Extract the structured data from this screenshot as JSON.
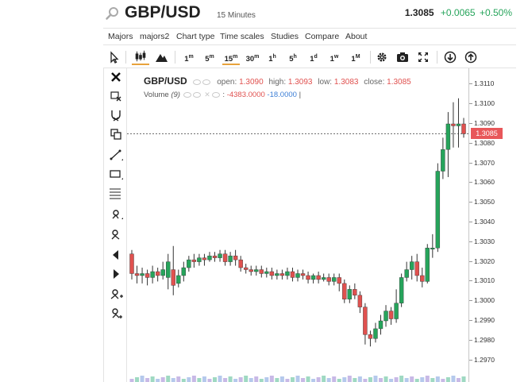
{
  "header": {
    "symbol": "GBP/USD",
    "interval": "15 Minutes",
    "price": "1.3085",
    "change": "+0.0065",
    "change_pct": "+0.50%",
    "colors": {
      "up": "#26a45b",
      "down": "#e0514f",
      "accent": "#e8a23b"
    }
  },
  "menu": [
    "Majors",
    "majors2",
    "Chart type",
    "Time scales",
    "Studies",
    "Compare",
    "About"
  ],
  "toolbar": {
    "intervals": [
      {
        "base": "1",
        "sup": "m"
      },
      {
        "base": "5",
        "sup": "m"
      },
      {
        "base": "15",
        "sup": "m"
      },
      {
        "base": "30",
        "sup": "m"
      },
      {
        "base": "1",
        "sup": "h"
      },
      {
        "base": "5",
        "sup": "h"
      },
      {
        "base": "1",
        "sup": "d"
      },
      {
        "base": "1",
        "sup": "w"
      },
      {
        "base": "1",
        "sup": "M"
      }
    ],
    "active_interval": "15m",
    "icons": [
      "cursor-icon",
      "candlestick-icon",
      "mountain-icon",
      "gear-icon",
      "camera-icon",
      "fullscreen-icon",
      "download-icon",
      "upload-icon"
    ]
  },
  "drawing_tools": [
    "close-icon",
    "crosshair-delete-icon",
    "magnet-icon",
    "copy-icon",
    "trendline-icon",
    "rectangle-icon",
    "fibonacci-icon",
    "pencil-icon",
    "text-icon",
    "arrow-left-icon",
    "arrow-right-icon",
    "add-text-icon",
    "add-alert-icon"
  ],
  "legend": {
    "symbol": "GBP/USD",
    "open_label": "open:",
    "open": "1.3090",
    "high_label": "high:",
    "high": "1.3093",
    "low_label": "low:",
    "low": "1.3083",
    "close_label": "close:",
    "close": "1.3085",
    "volume_label": "Volume",
    "volume_period": "(9)",
    "volume_val1": "-4383.0000",
    "volume_val2": "-18.0000"
  },
  "chart_data": {
    "type": "candlestick",
    "ylim": [
      1.2965,
      1.3115
    ],
    "yticks": [
      "1.3110",
      "1.3100",
      "1.3090",
      "1.3080",
      "1.3070",
      "1.3060",
      "1.3050",
      "1.3040",
      "1.3030",
      "1.3020",
      "1.3010",
      "1.3000",
      "1.2990",
      "1.2980",
      "1.2970"
    ],
    "last_price": "1.3085",
    "candles": [
      [
        1.3024,
        1.3014,
        1.3026,
        1.3011
      ],
      [
        1.3014,
        1.3013,
        1.3018,
        1.3009
      ],
      [
        1.3013,
        1.3014,
        1.3017,
        1.3009
      ],
      [
        1.3014,
        1.3012,
        1.3016,
        1.3008
      ],
      [
        1.3012,
        1.3015,
        1.3018,
        1.3009
      ],
      [
        1.3015,
        1.3013,
        1.3017,
        1.301
      ],
      [
        1.3013,
        1.3016,
        1.302,
        1.3011
      ],
      [
        1.3012,
        1.302,
        1.3024,
        1.3006
      ],
      [
        1.3016,
        1.3008,
        1.3028,
        1.3003
      ],
      [
        1.3009,
        1.3013,
        1.3016,
        1.3007
      ],
      [
        1.3013,
        1.3017,
        1.302,
        1.301
      ],
      [
        1.3017,
        1.3021,
        1.3023,
        1.3015
      ],
      [
        1.3021,
        1.302,
        1.3024,
        1.3017
      ],
      [
        1.302,
        1.3022,
        1.3024,
        1.3018
      ],
      [
        1.3022,
        1.3021,
        1.3024,
        1.3018
      ],
      [
        1.3021,
        1.3023,
        1.3025,
        1.302
      ],
      [
        1.3023,
        1.3022,
        1.3025,
        1.302
      ],
      [
        1.3022,
        1.3024,
        1.3026,
        1.302
      ],
      [
        1.3024,
        1.302,
        1.3026,
        1.3018
      ],
      [
        1.302,
        1.3023,
        1.3025,
        1.3018
      ],
      [
        1.3023,
        1.3021,
        1.3026,
        1.3018
      ],
      [
        1.3021,
        1.3017,
        1.3023,
        1.3015
      ],
      [
        1.3017,
        1.3016,
        1.3019,
        1.3014
      ],
      [
        1.3016,
        1.3015,
        1.3018,
        1.3013
      ],
      [
        1.3015,
        1.3016,
        1.3018,
        1.3013
      ],
      [
        1.3016,
        1.3014,
        1.3018,
        1.3012
      ],
      [
        1.3014,
        1.3015,
        1.3017,
        1.3012
      ],
      [
        1.3015,
        1.3013,
        1.3017,
        1.3011
      ],
      [
        1.3013,
        1.3014,
        1.3016,
        1.3011
      ],
      [
        1.3014,
        1.3013,
        1.3016,
        1.3011
      ],
      [
        1.3013,
        1.3015,
        1.3017,
        1.3011
      ],
      [
        1.3015,
        1.3012,
        1.3017,
        1.301
      ],
      [
        1.3012,
        1.3014,
        1.3016,
        1.301
      ],
      [
        1.3014,
        1.3013,
        1.3016,
        1.3011
      ],
      [
        1.3013,
        1.3011,
        1.3015,
        1.3009
      ],
      [
        1.3011,
        1.3013,
        1.3014,
        1.3009
      ],
      [
        1.3013,
        1.3011,
        1.3015,
        1.3009
      ],
      [
        1.3011,
        1.3012,
        1.3014,
        1.301
      ],
      [
        1.3012,
        1.301,
        1.3014,
        1.3008
      ],
      [
        1.301,
        1.3012,
        1.3014,
        1.3008
      ],
      [
        1.3012,
        1.3009,
        1.3014,
        1.3005
      ],
      [
        1.3009,
        1.3001,
        1.3011,
        1.2999
      ],
      [
        1.3001,
        1.3006,
        1.3008,
        1.2999
      ],
      [
        1.3006,
        1.3003,
        1.3009,
        1.3001
      ],
      [
        1.3003,
        1.2997,
        1.3005,
        1.2994
      ],
      [
        1.2997,
        1.2983,
        1.2999,
        1.2978
      ],
      [
        1.2983,
        1.2981,
        1.2985,
        1.2977
      ],
      [
        1.2981,
        1.2986,
        1.2989,
        1.2979
      ],
      [
        1.2986,
        1.299,
        1.2993,
        1.2983
      ],
      [
        1.299,
        1.2995,
        1.2998,
        1.2987
      ],
      [
        1.2995,
        1.2991,
        1.2997,
        1.2988
      ],
      [
        1.2991,
        1.2999,
        1.3006,
        1.2989
      ],
      [
        1.2999,
        1.3012,
        1.3014,
        1.2997
      ],
      [
        1.3012,
        1.3016,
        1.302,
        1.301
      ],
      [
        1.3016,
        1.302,
        1.3023,
        1.3011
      ],
      [
        1.302,
        1.3013,
        1.3024,
        1.301
      ],
      [
        1.3013,
        1.301,
        1.3017,
        1.3007
      ],
      [
        1.301,
        1.3027,
        1.3029,
        1.3009
      ],
      [
        1.3027,
        1.3027,
        1.3034,
        1.3022
      ],
      [
        1.3027,
        1.3066,
        1.307,
        1.3025
      ],
      [
        1.3066,
        1.3077,
        1.3083,
        1.3062
      ],
      [
        1.3077,
        1.309,
        1.3096,
        1.3063
      ],
      [
        1.309,
        1.3089,
        1.3101,
        1.3078
      ],
      [
        1.3089,
        1.309,
        1.3103,
        1.3078
      ],
      [
        1.309,
        1.3085,
        1.3093,
        1.3083
      ]
    ],
    "volume_bars": 65
  }
}
